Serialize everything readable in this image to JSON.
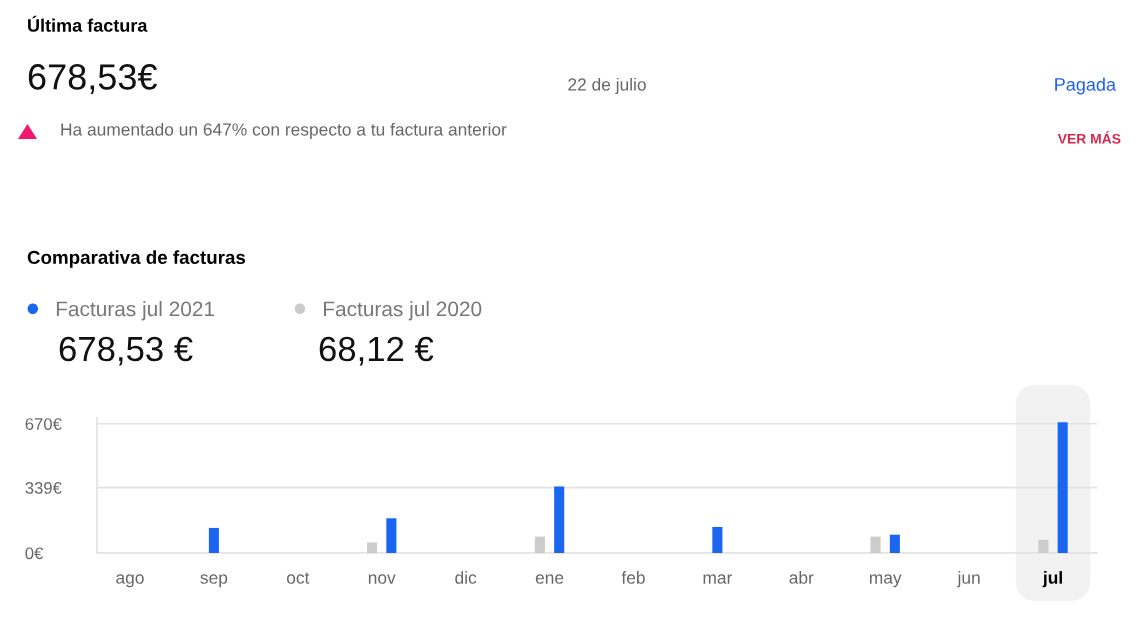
{
  "chart_data": [
    {
      "type": "other",
      "title": "Última factura",
      "annotations": [
        "678,53€",
        "22 de julio",
        "Pagada",
        "Ha aumentado un 647% con respecto a tu factura anterior",
        "VER MÁS"
      ]
    },
    {
      "type": "bar",
      "title": "Comparativa de facturas",
      "categories": [
        "ago",
        "sep",
        "oct",
        "nov",
        "dic",
        "ene",
        "feb",
        "mar",
        "abr",
        "may",
        "jun",
        "jul"
      ],
      "series": [
        {
          "name": "Facturas jul 2021",
          "color": "#1a66f0",
          "values": [
            null,
            130,
            null,
            180,
            null,
            345,
            null,
            135,
            null,
            95,
            null,
            678.53
          ]
        },
        {
          "name": "Facturas jul 2020",
          "color": "#cccccc",
          "values": [
            null,
            null,
            null,
            55,
            null,
            85,
            null,
            null,
            null,
            85,
            null,
            68.12
          ]
        }
      ],
      "ylim": [
        0,
        700
      ],
      "yticks": [
        {
          "value": 0,
          "label": "0€"
        },
        {
          "value": 339,
          "label": "339€"
        },
        {
          "value": 670,
          "label": "670€"
        }
      ],
      "grid": "y",
      "legend": "top left",
      "bands": [
        {
          "axis": "x",
          "from": "jul",
          "to": "jul",
          "color": "#f2f2f2"
        }
      ],
      "annotations": [
        "678,53 €",
        "68,12 €"
      ]
    }
  ]
}
